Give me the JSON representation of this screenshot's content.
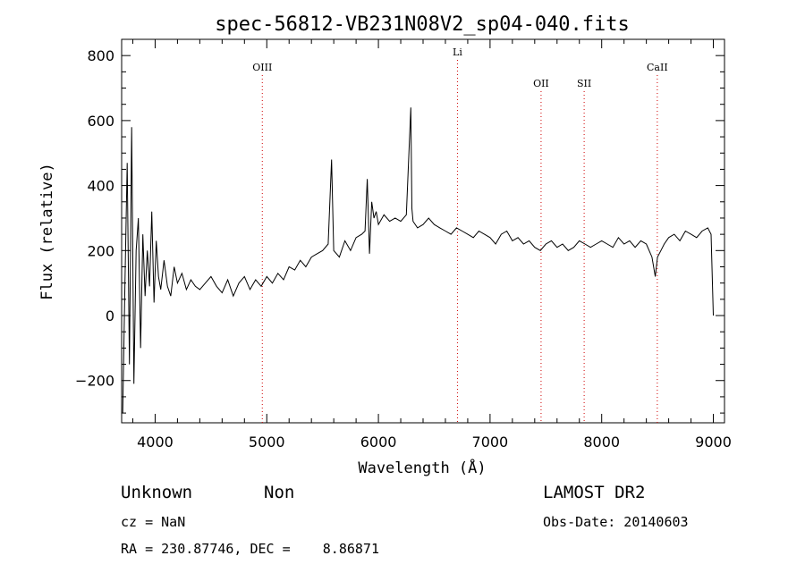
{
  "chart_data": {
    "type": "line",
    "title": "spec-56812-VB231N08V2_sp04-040.fits",
    "xlabel": "Wavelength (Å)",
    "ylabel": "Flux (relative)",
    "xlim": [
      3700,
      9100
    ],
    "ylim": [
      -330,
      850
    ],
    "xticks": [
      4000,
      5000,
      6000,
      7000,
      8000,
      9000
    ],
    "yticks": [
      -200,
      0,
      200,
      400,
      600,
      800
    ],
    "grid": false,
    "series": [
      {
        "x": [
          3710,
          3730,
          3750,
          3770,
          3790,
          3810,
          3830,
          3850,
          3870,
          3890,
          3910,
          3930,
          3950,
          3970,
          3990,
          4010,
          4030,
          4050,
          4080,
          4110,
          4140,
          4170,
          4200,
          4240,
          4280,
          4320,
          4360,
          4400,
          4450,
          4500,
          4550,
          4600,
          4650,
          4700,
          4750,
          4800,
          4850,
          4900,
          4950,
          5000,
          5050,
          5100,
          5150,
          5200,
          5250,
          5300,
          5350,
          5400,
          5450,
          5500,
          5550,
          5580,
          5600,
          5650,
          5700,
          5750,
          5800,
          5850,
          5880,
          5900,
          5920,
          5940,
          5960,
          5980,
          6000,
          6050,
          6100,
          6150,
          6200,
          6250,
          6290,
          6300,
          6310,
          6350,
          6400,
          6450,
          6500,
          6550,
          6600,
          6650,
          6700,
          6750,
          6800,
          6850,
          6900,
          6950,
          7000,
          7050,
          7100,
          7150,
          7200,
          7250,
          7300,
          7350,
          7400,
          7450,
          7500,
          7550,
          7600,
          7650,
          7700,
          7750,
          7800,
          7850,
          7900,
          7950,
          8000,
          8050,
          8100,
          8150,
          8200,
          8250,
          8300,
          8350,
          8400,
          8450,
          8480,
          8500,
          8530,
          8560,
          8600,
          8650,
          8700,
          8750,
          8800,
          8850,
          8900,
          8950,
          8980,
          9000
        ],
        "y": [
          -300,
          100,
          470,
          -150,
          580,
          -210,
          200,
          300,
          -100,
          250,
          60,
          200,
          90,
          320,
          40,
          230,
          120,
          80,
          170,
          90,
          60,
          150,
          100,
          130,
          80,
          110,
          90,
          80,
          100,
          120,
          90,
          70,
          110,
          60,
          100,
          120,
          80,
          110,
          90,
          120,
          100,
          130,
          110,
          150,
          140,
          170,
          150,
          180,
          190,
          200,
          220,
          480,
          200,
          180,
          230,
          200,
          240,
          250,
          260,
          420,
          190,
          350,
          300,
          320,
          280,
          310,
          290,
          300,
          290,
          310,
          640,
          330,
          290,
          270,
          280,
          300,
          280,
          270,
          260,
          250,
          270,
          260,
          250,
          240,
          260,
          250,
          240,
          220,
          250,
          260,
          230,
          240,
          220,
          230,
          210,
          200,
          220,
          230,
          210,
          220,
          200,
          210,
          230,
          220,
          210,
          220,
          230,
          220,
          210,
          240,
          220,
          230,
          210,
          230,
          220,
          180,
          120,
          180,
          200,
          220,
          240,
          250,
          230,
          260,
          250,
          240,
          260,
          270,
          250,
          0
        ]
      }
    ],
    "lines": [
      {
        "name": "OIII",
        "x": 4960
      },
      {
        "name": "Li",
        "x": 6708
      },
      {
        "name": "OII",
        "x": 7457
      },
      {
        "name": "SII",
        "x": 7843
      },
      {
        "name": "CaII",
        "x": 8498
      }
    ]
  },
  "footer": {
    "classification": "Unknown",
    "subclass": "Non",
    "survey": "LAMOST DR2",
    "cz": "cz = NaN",
    "obs_date": "Obs-Date: 20140603",
    "radec": "RA = 230.87746, DEC =    8.86871"
  }
}
